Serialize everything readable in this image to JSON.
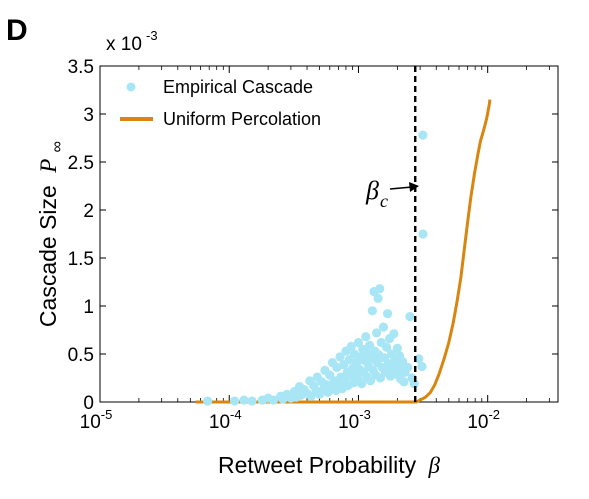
{
  "panel_label": "D",
  "chart_data": {
    "type": "scatter",
    "xlabel": "Retweet Probability",
    "xlabel_symbol": "β",
    "ylabel": "Cascade Size",
    "ylabel_symbol": "P",
    "ylabel_subscript": "∞",
    "y_multiplier": {
      "prefix": "x 10",
      "exponent": "-3"
    },
    "x_scale": "log",
    "xlim": [
      1e-05,
      0.035
    ],
    "ylim": [
      0,
      0.0035
    ],
    "x_ticks": [
      {
        "value": 1e-05,
        "base": "10",
        "exp": "-5"
      },
      {
        "value": 0.0001,
        "base": "10",
        "exp": "-4"
      },
      {
        "value": 0.001,
        "base": "10",
        "exp": "-3"
      },
      {
        "value": 0.01,
        "base": "10",
        "exp": "-2"
      }
    ],
    "y_ticks": [
      {
        "value": 0,
        "label": "0"
      },
      {
        "value": 0.0005,
        "label": "0.5"
      },
      {
        "value": 0.001,
        "label": "1"
      },
      {
        "value": 0.0015,
        "label": "1.5"
      },
      {
        "value": 0.002,
        "label": "2"
      },
      {
        "value": 0.0025,
        "label": "2.5"
      },
      {
        "value": 0.003,
        "label": "3"
      },
      {
        "value": 0.0035,
        "label": "3.5"
      }
    ],
    "legend_position": "top-left",
    "colors": {
      "empirical": "#a8e6f5",
      "percolation": "#d8860f",
      "threshold": "#000000"
    },
    "threshold": {
      "x": 0.00275,
      "label": "β",
      "label_subscript": "c"
    },
    "series": [
      {
        "name": "Empirical Cascade",
        "kind": "scatter",
        "points": [
          [
            6.8e-05,
            1e-05
          ],
          [
            0.00011,
            1e-05
          ],
          [
            0.00013,
            2e-05
          ],
          [
            0.00015,
            1e-05
          ],
          [
            0.00018,
            2e-05
          ],
          [
            0.0002,
            4e-05
          ],
          [
            0.00022,
            2e-05
          ],
          [
            0.00025,
            6e-05
          ],
          [
            0.00026,
            3e-05
          ],
          [
            0.00028,
            8e-05
          ],
          [
            0.0003,
            4e-05
          ],
          [
            0.00032,
            0.00011
          ],
          [
            0.00033,
            5e-05
          ],
          [
            0.00035,
            0.00016
          ],
          [
            0.00036,
            7e-05
          ],
          [
            0.00038,
            0.00013
          ],
          [
            0.0004,
            9e-05
          ],
          [
            0.00042,
            0.00022
          ],
          [
            0.00043,
            6e-05
          ],
          [
            0.00045,
            0.00017
          ],
          [
            0.00047,
            0.00012
          ],
          [
            0.00048,
            0.00026
          ],
          [
            0.0005,
            8e-05
          ],
          [
            0.00052,
            0.00021
          ],
          [
            0.00054,
            0.00014
          ],
          [
            0.00055,
            0.00033
          ],
          [
            0.00057,
            0.00018
          ],
          [
            0.00058,
            0.0001
          ],
          [
            0.0006,
            0.00028
          ],
          [
            0.00062,
            0.00015
          ],
          [
            0.00063,
            0.00041
          ],
          [
            0.00065,
            0.00022
          ],
          [
            0.00067,
            0.00012
          ],
          [
            0.00068,
            0.00036
          ],
          [
            0.0007,
            0.00019
          ],
          [
            0.00072,
            0.00047
          ],
          [
            0.00073,
            0.00026
          ],
          [
            0.00075,
            0.00014
          ],
          [
            0.00077,
            0.00039
          ],
          [
            0.00078,
            0.00023
          ],
          [
            0.0008,
            0.00053
          ],
          [
            0.00082,
            0.00031
          ],
          [
            0.00083,
            0.00017
          ],
          [
            0.00085,
            0.00044
          ],
          [
            0.00087,
            0.00027
          ],
          [
            0.00088,
            0.00058
          ],
          [
            0.0009,
            0.00035
          ],
          [
            0.00092,
            0.0002
          ],
          [
            0.00093,
            0.0005
          ],
          [
            0.00095,
            0.00029
          ],
          [
            0.00097,
            0.00041
          ],
          [
            0.00099,
            0.00024
          ],
          [
            0.001,
            0.00062
          ],
          [
            0.00102,
            0.00034
          ],
          [
            0.00104,
            0.00047
          ],
          [
            0.00106,
            0.00019
          ],
          [
            0.00108,
            0.00055
          ],
          [
            0.0011,
            0.00031
          ],
          [
            0.00112,
            0.00043
          ],
          [
            0.00114,
            0.00068
          ],
          [
            0.00116,
            0.00026
          ],
          [
            0.00118,
            0.0005
          ],
          [
            0.0012,
            0.00037
          ],
          [
            0.00122,
            0.00059
          ],
          [
            0.00124,
            0.00022
          ],
          [
            0.00126,
            0.00045
          ],
          [
            0.00128,
            0.00095
          ],
          [
            0.0013,
            0.00033
          ],
          [
            0.00132,
            0.00115
          ],
          [
            0.00134,
            0.00053
          ],
          [
            0.00136,
            0.00028
          ],
          [
            0.00138,
            0.00072
          ],
          [
            0.0014,
            0.00041
          ],
          [
            0.00142,
            0.00108
          ],
          [
            0.00144,
            0.00049
          ],
          [
            0.00146,
            0.00118
          ],
          [
            0.00148,
            0.00025
          ],
          [
            0.0015,
            0.00062
          ],
          [
            0.00153,
            0.00036
          ],
          [
            0.00156,
            0.00078
          ],
          [
            0.00159,
            0.00046
          ],
          [
            0.00162,
            0.00031
          ],
          [
            0.00165,
            0.00057
          ],
          [
            0.00168,
            0.00092
          ],
          [
            0.00171,
            0.0004
          ],
          [
            0.00174,
            0.00066
          ],
          [
            0.00177,
            0.00027
          ],
          [
            0.0018,
            0.0005
          ],
          [
            0.00184,
            0.00035
          ],
          [
            0.00188,
            0.00071
          ],
          [
            0.00192,
            0.00044
          ],
          [
            0.00196,
            0.00029
          ],
          [
            0.002,
            0.00056
          ],
          [
            0.00204,
            0.00038
          ],
          [
            0.00208,
            0.00048
          ],
          [
            0.00212,
            0.00024
          ],
          [
            0.00216,
            0.00033
          ],
          [
            0.0022,
            0.00042
          ],
          [
            0.00225,
            0.00021
          ],
          [
            0.0023,
            0.00031
          ],
          [
            0.0024,
            0.00036
          ],
          [
            0.0025,
            0.00089
          ],
          [
            0.0026,
            0.00025
          ],
          [
            0.0027,
            0.00019
          ],
          [
            0.00293,
            0.00045
          ],
          [
            0.0031,
            0.00037
          ],
          [
            0.00315,
            0.00278
          ],
          [
            0.00316,
            0.00175
          ]
        ]
      },
      {
        "name": "Uniform Percolation",
        "kind": "line",
        "points": [
          [
            5.5e-05,
            0.0
          ],
          [
            0.0028,
            0.0
          ],
          [
            0.003,
            2e-05
          ],
          [
            0.0033,
            5e-05
          ],
          [
            0.0036,
            0.0001
          ],
          [
            0.0039,
            0.00018
          ],
          [
            0.0042,
            0.00029
          ],
          [
            0.0046,
            0.00045
          ],
          [
            0.005,
            0.00062
          ],
          [
            0.0054,
            0.00082
          ],
          [
            0.0058,
            0.00105
          ],
          [
            0.0062,
            0.0013
          ],
          [
            0.0066,
            0.0016
          ],
          [
            0.007,
            0.00188
          ],
          [
            0.0074,
            0.00213
          ],
          [
            0.0079,
            0.00238
          ],
          [
            0.0084,
            0.00258
          ],
          [
            0.0088,
            0.00272
          ],
          [
            0.0093,
            0.00283
          ],
          [
            0.0098,
            0.00295
          ],
          [
            0.0103,
            0.0031
          ],
          [
            0.0104,
            0.00315
          ]
        ]
      }
    ]
  }
}
